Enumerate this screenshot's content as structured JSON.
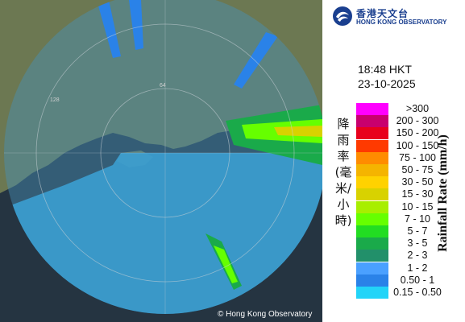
{
  "logo": {
    "name_zh": "香港天文台",
    "name_en": "HONG KONG OBSERVATORY",
    "icon": "hko-logo-icon"
  },
  "timestamp": {
    "time": "18:48 HKT",
    "date": "23-10-2025"
  },
  "legend": {
    "title_zh": "降雨率(毫米/小時)",
    "title_en": "Rainfall Rate (mm/h)",
    "bins": [
      {
        "label": ">300",
        "color": "#ff00ff"
      },
      {
        "label": "200 - 300",
        "color": "#c8006e"
      },
      {
        "label": "150 - 200",
        "color": "#e8001c"
      },
      {
        "label": "100 - 150",
        "color": "#ff3a00"
      },
      {
        "label": "75 - 100",
        "color": "#ff8c00"
      },
      {
        "label": "50 - 75",
        "color": "#f5b400"
      },
      {
        "label": "30 - 50",
        "color": "#ffd200"
      },
      {
        "label": "15 - 30",
        "color": "#d8d200"
      },
      {
        "label": "10 - 15",
        "color": "#a8ee00"
      },
      {
        "label": "7 - 10",
        "color": "#66ff00"
      },
      {
        "label": "5 - 7",
        "color": "#22dd22"
      },
      {
        "label": "3 - 5",
        "color": "#1aaa4a"
      },
      {
        "label": "2 - 3",
        "color": "#22906a"
      },
      {
        "label": "1 - 2",
        "color": "#4aa0ff"
      },
      {
        "label": "0.50 - 1",
        "color": "#2a82e8"
      },
      {
        "label": "0.15 - 0.50",
        "color": "#22d4f8"
      }
    ]
  },
  "map": {
    "range_ring_labels": [
      "64",
      "128"
    ],
    "copyright": "© Hong Kong Observatory",
    "colors": {
      "land": "#6f7a55",
      "sea": "#213341",
      "radar_field": "#3c8ab0"
    }
  }
}
